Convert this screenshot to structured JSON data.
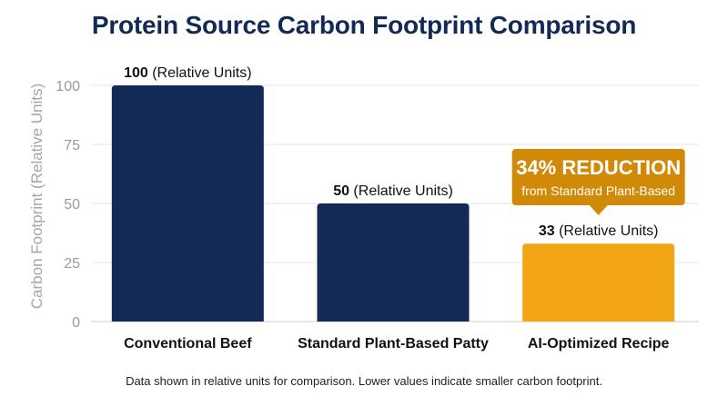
{
  "chart_data": {
    "type": "bar",
    "title": "Protein Source Carbon Footprint Comparison",
    "xlabel": "",
    "ylabel": "Carbon Footprint (Relative Units)",
    "ylim": [
      0,
      100
    ],
    "yticks": [
      0,
      25,
      50,
      75,
      100
    ],
    "grid": true,
    "categories": [
      "Conventional Beef",
      "Standard Plant-Based Patty",
      "AI-Optimized Recipe"
    ],
    "values": [
      100,
      50,
      33
    ],
    "value_labels": [
      "100",
      "50",
      "33"
    ],
    "value_unit": "(Relative Units)",
    "colors": [
      "#132a57",
      "#132a57",
      "#f2a516"
    ],
    "annotation": {
      "category": "AI-Optimized Recipe",
      "title": "34% REDUCTION",
      "subtitle": "from Standard Plant-Based",
      "color": "#d18a08"
    }
  },
  "footnote": "Data shown in relative units for comparison. Lower values indicate smaller carbon footprint."
}
